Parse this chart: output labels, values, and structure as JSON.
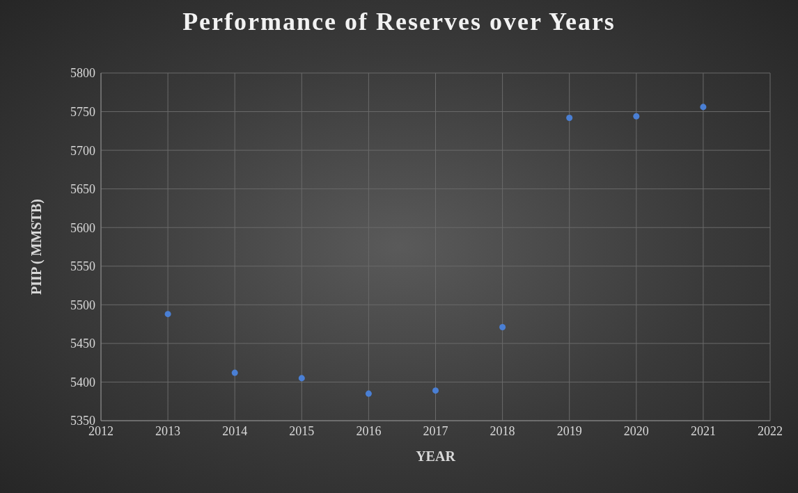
{
  "chart_data": {
    "type": "scatter",
    "title": "Performance of Reserves over Years",
    "xlabel": "YEAR",
    "ylabel": "PIIP ( MMSTB)",
    "x": [
      2013,
      2014,
      2015,
      2016,
      2017,
      2018,
      2019,
      2020,
      2021
    ],
    "values": [
      5488,
      5412,
      5405,
      5385,
      5389,
      5471,
      5742,
      5744,
      5756
    ],
    "color": "#4a7fd4",
    "xlim": [
      2012,
      2022
    ],
    "xticks": [
      2012,
      2013,
      2014,
      2015,
      2016,
      2017,
      2018,
      2019,
      2020,
      2021,
      2022
    ],
    "ylim": [
      5350,
      5800
    ],
    "yticks": [
      5350,
      5400,
      5450,
      5500,
      5550,
      5600,
      5650,
      5700,
      5750,
      5800
    ],
    "grid": true,
    "marker": "circle"
  }
}
